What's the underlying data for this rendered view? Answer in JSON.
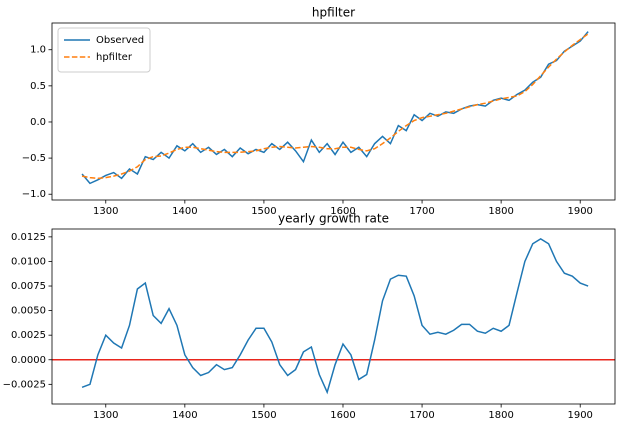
{
  "chart_data": [
    {
      "type": "line",
      "title": "hpfilter",
      "x": [
        1270,
        1280,
        1290,
        1300,
        1310,
        1320,
        1330,
        1340,
        1350,
        1360,
        1370,
        1380,
        1390,
        1400,
        1410,
        1420,
        1430,
        1440,
        1450,
        1460,
        1470,
        1480,
        1490,
        1500,
        1510,
        1520,
        1530,
        1540,
        1550,
        1560,
        1570,
        1580,
        1590,
        1600,
        1610,
        1620,
        1630,
        1640,
        1650,
        1660,
        1670,
        1680,
        1690,
        1700,
        1710,
        1720,
        1730,
        1740,
        1750,
        1760,
        1770,
        1780,
        1790,
        1800,
        1810,
        1820,
        1830,
        1840,
        1850,
        1860,
        1870,
        1880,
        1890,
        1900,
        1910
      ],
      "series": [
        {
          "name": "Observed",
          "color": "#1f77b4",
          "linestyle": "solid",
          "values": [
            -0.72,
            -0.85,
            -0.8,
            -0.74,
            -0.7,
            -0.78,
            -0.65,
            -0.72,
            -0.48,
            -0.52,
            -0.42,
            -0.5,
            -0.33,
            -0.4,
            -0.3,
            -0.42,
            -0.35,
            -0.45,
            -0.38,
            -0.48,
            -0.36,
            -0.44,
            -0.38,
            -0.42,
            -0.3,
            -0.38,
            -0.28,
            -0.4,
            -0.55,
            -0.25,
            -0.42,
            -0.3,
            -0.45,
            -0.28,
            -0.42,
            -0.35,
            -0.48,
            -0.3,
            -0.2,
            -0.3,
            -0.05,
            -0.12,
            0.1,
            0.02,
            0.12,
            0.08,
            0.14,
            0.12,
            0.18,
            0.22,
            0.24,
            0.22,
            0.3,
            0.33,
            0.3,
            0.38,
            0.44,
            0.55,
            0.62,
            0.8,
            0.85,
            0.98,
            1.05,
            1.12,
            1.25
          ]
        },
        {
          "name": "hpfilter",
          "color": "#ff7f0e",
          "linestyle": "dashed",
          "values": [
            -0.75,
            -0.77,
            -0.78,
            -0.77,
            -0.75,
            -0.72,
            -0.68,
            -0.62,
            -0.52,
            -0.48,
            -0.47,
            -0.43,
            -0.38,
            -0.35,
            -0.35,
            -0.37,
            -0.39,
            -0.41,
            -0.42,
            -0.42,
            -0.42,
            -0.41,
            -0.4,
            -0.37,
            -0.35,
            -0.34,
            -0.35,
            -0.36,
            -0.35,
            -0.34,
            -0.35,
            -0.37,
            -0.37,
            -0.35,
            -0.35,
            -0.38,
            -0.4,
            -0.37,
            -0.3,
            -0.22,
            -0.13,
            -0.05,
            0.02,
            0.06,
            0.08,
            0.1,
            0.12,
            0.15,
            0.18,
            0.21,
            0.24,
            0.26,
            0.29,
            0.32,
            0.34,
            0.36,
            0.42,
            0.52,
            0.64,
            0.76,
            0.87,
            0.97,
            1.06,
            1.14,
            1.22
          ]
        }
      ],
      "xlim": [
        1232,
        1944
      ],
      "xticks": [
        1300,
        1400,
        1500,
        1600,
        1700,
        1800,
        1900
      ],
      "ylim": [
        -1.08,
        1.37
      ],
      "yticks": [
        {
          "value": -1,
          "label": "−1.0"
        },
        {
          "value": -0.5,
          "label": "−0.5"
        },
        {
          "value": 0,
          "label": "0.0"
        },
        {
          "value": 0.5,
          "label": "0.5"
        },
        {
          "value": 1,
          "label": "1.0"
        }
      ],
      "legend": "upper left"
    },
    {
      "type": "line",
      "title": "yearly growth rate",
      "x": [
        1270,
        1280,
        1290,
        1300,
        1310,
        1320,
        1330,
        1340,
        1350,
        1360,
        1370,
        1380,
        1390,
        1400,
        1410,
        1420,
        1430,
        1440,
        1450,
        1460,
        1470,
        1480,
        1490,
        1500,
        1510,
        1520,
        1530,
        1540,
        1550,
        1560,
        1570,
        1580,
        1590,
        1600,
        1610,
        1620,
        1630,
        1640,
        1650,
        1660,
        1670,
        1680,
        1690,
        1700,
        1710,
        1720,
        1730,
        1740,
        1750,
        1760,
        1770,
        1780,
        1790,
        1800,
        1810,
        1820,
        1830,
        1840,
        1850,
        1860,
        1870,
        1880,
        1890,
        1900,
        1910
      ],
      "series": [
        {
          "color": "#1f77b4",
          "linestyle": "solid",
          "values": [
            -0.0028,
            -0.0025,
            0.0005,
            0.0025,
            0.0017,
            0.0012,
            0.0035,
            0.0072,
            0.0078,
            0.0045,
            0.0037,
            0.0052,
            0.0035,
            0.0005,
            -0.0008,
            -0.0016,
            -0.0013,
            -0.0005,
            -0.001,
            -0.0008,
            0.0005,
            0.002,
            0.0032,
            0.0032,
            0.0018,
            -0.0005,
            -0.0016,
            -0.001,
            0.0008,
            0.0013,
            -0.0015,
            -0.0033,
            -0.0005,
            0.0016,
            0.0005,
            -0.002,
            -0.0015,
            0.002,
            0.006,
            0.0082,
            0.0086,
            0.0085,
            0.0065,
            0.0035,
            0.0026,
            0.0028,
            0.0026,
            0.003,
            0.0036,
            0.0036,
            0.0029,
            0.0027,
            0.0032,
            0.0029,
            0.0035,
            0.0068,
            0.01,
            0.0118,
            0.0123,
            0.0118,
            0.01,
            0.0088,
            0.0085,
            0.0078,
            0.0075
          ]
        }
      ],
      "hline": {
        "value": 0,
        "color": "#e8251c"
      },
      "xlim": [
        1232,
        1944
      ],
      "xticks": [
        1300,
        1400,
        1500,
        1600,
        1700,
        1800,
        1900
      ],
      "ylim": [
        -0.0045,
        0.0133
      ],
      "yticks": [
        {
          "value": -0.0025,
          "label": "−0.0025"
        },
        {
          "value": 0,
          "label": "0.0000"
        },
        {
          "value": 0.0025,
          "label": "0.0025"
        },
        {
          "value": 0.005,
          "label": "0.0050"
        },
        {
          "value": 0.0075,
          "label": "0.0075"
        },
        {
          "value": 0.01,
          "label": "0.0100"
        },
        {
          "value": 0.0125,
          "label": "0.0125"
        }
      ]
    }
  ]
}
